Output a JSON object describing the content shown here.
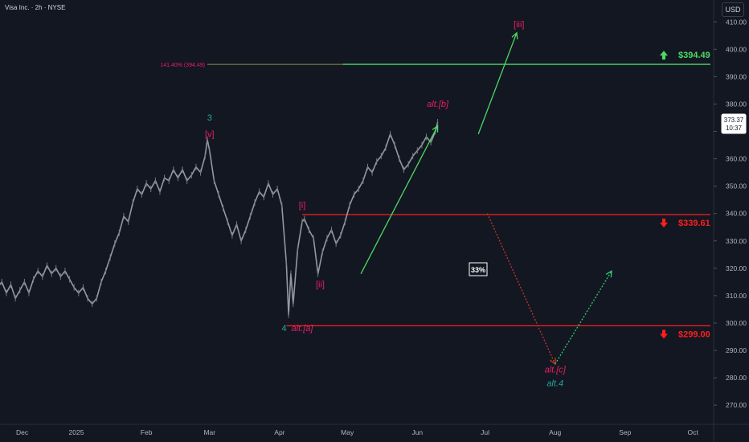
{
  "header": {
    "symbol_title": "Visa Inc. · 2h · NYSE",
    "currency": "USD"
  },
  "chart_data": {
    "type": "line",
    "title": "Visa Inc. · 2h · NYSE",
    "ylim": [
      263,
      418
    ],
    "y_ticks": [
      270,
      280,
      290,
      300,
      310,
      320,
      330,
      340,
      350,
      360,
      370,
      380,
      390,
      400,
      410
    ],
    "y_tick_labels": [
      "270.00",
      "280.00",
      "290.00",
      "300.00",
      "310.00",
      "320.00",
      "330.00",
      "340.00",
      "350.00",
      "360.00",
      "370.00",
      "380.00",
      "390.00",
      "400.00",
      "410.00"
    ],
    "x_ticks": [
      {
        "label": "Dec",
        "d": -24
      },
      {
        "label": "2025",
        "d": 0
      },
      {
        "label": "Feb",
        "d": 31
      },
      {
        "label": "Mar",
        "d": 59
      },
      {
        "label": "Apr",
        "d": 90
      },
      {
        "label": "May",
        "d": 120
      },
      {
        "label": "Jun",
        "d": 151
      },
      {
        "label": "Jul",
        "d": 181
      },
      {
        "label": "Aug",
        "d": 212
      },
      {
        "label": "Sep",
        "d": 243
      },
      {
        "label": "Oct",
        "d": 273
      }
    ],
    "series": [
      {
        "values": [
          [
            -35,
            313
          ],
          [
            -33,
            315
          ],
          [
            -31,
            311
          ],
          [
            -29,
            314
          ],
          [
            -27,
            309
          ],
          [
            -25,
            312
          ],
          [
            -23,
            315
          ],
          [
            -21,
            311
          ],
          [
            -19,
            316
          ],
          [
            -17,
            319
          ],
          [
            -15,
            317
          ],
          [
            -13,
            321
          ],
          [
            -11,
            318
          ],
          [
            -9,
            320
          ],
          [
            -7,
            317
          ],
          [
            -5,
            319
          ],
          [
            -3,
            316
          ],
          [
            -1,
            313
          ],
          [
            1,
            311
          ],
          [
            3,
            313
          ],
          [
            5,
            309
          ],
          [
            7,
            307
          ],
          [
            9,
            309
          ],
          [
            11,
            315
          ],
          [
            13,
            319
          ],
          [
            15,
            324
          ],
          [
            17,
            329
          ],
          [
            19,
            333
          ],
          [
            21,
            339
          ],
          [
            23,
            337
          ],
          [
            25,
            344
          ],
          [
            27,
            349
          ],
          [
            29,
            347
          ],
          [
            31,
            351
          ],
          [
            33,
            349
          ],
          [
            35,
            352
          ],
          [
            37,
            348
          ],
          [
            39,
            353
          ],
          [
            41,
            352
          ],
          [
            43,
            356
          ],
          [
            45,
            353
          ],
          [
            47,
            356
          ],
          [
            49,
            352
          ],
          [
            51,
            354
          ],
          [
            53,
            357
          ],
          [
            55,
            355
          ],
          [
            57,
            361
          ],
          [
            58,
            367
          ],
          [
            59,
            363
          ],
          [
            61,
            352
          ],
          [
            63,
            347
          ],
          [
            65,
            342
          ],
          [
            67,
            337
          ],
          [
            69,
            332
          ],
          [
            71,
            336
          ],
          [
            73,
            330
          ],
          [
            75,
            334
          ],
          [
            77,
            339
          ],
          [
            79,
            344
          ],
          [
            81,
            348
          ],
          [
            83,
            346
          ],
          [
            85,
            351
          ],
          [
            87,
            347
          ],
          [
            89,
            349
          ],
          [
            91,
            343
          ],
          [
            93,
            322
          ],
          [
            94,
            303
          ],
          [
            95,
            318
          ],
          [
            96,
            307
          ],
          [
            98,
            327
          ],
          [
            100,
            337
          ],
          [
            101,
            338
          ],
          [
            103,
            334
          ],
          [
            105,
            331
          ],
          [
            107,
            318
          ],
          [
            109,
            326
          ],
          [
            111,
            331
          ],
          [
            113,
            334
          ],
          [
            115,
            329
          ],
          [
            117,
            332
          ],
          [
            119,
            337
          ],
          [
            121,
            343
          ],
          [
            123,
            347
          ],
          [
            125,
            349
          ],
          [
            127,
            352
          ],
          [
            129,
            357
          ],
          [
            131,
            355
          ],
          [
            133,
            359
          ],
          [
            135,
            361
          ],
          [
            137,
            364
          ],
          [
            139,
            369
          ],
          [
            141,
            365
          ],
          [
            143,
            360
          ],
          [
            145,
            356
          ],
          [
            147,
            358
          ],
          [
            149,
            361
          ],
          [
            151,
            363
          ],
          [
            153,
            365
          ],
          [
            155,
            368
          ],
          [
            157,
            366
          ],
          [
            159,
            370
          ],
          [
            160,
            373.37
          ]
        ]
      }
    ],
    "levels": [
      {
        "price": 394.49,
        "label": "$394.49",
        "color": "#4cd964",
        "direction": "up",
        "fib_label": "141.40% (394.49)"
      },
      {
        "price": 339.61,
        "label": "$339.61",
        "color": "#ff1e1e",
        "direction": "down"
      },
      {
        "price": 299.0,
        "label": "$299.00",
        "color": "#ff1e1e",
        "direction": "down"
      }
    ],
    "projections": [
      {
        "from": [
          126,
          318
        ],
        "to": [
          160,
          372
        ],
        "style": "solid",
        "color": "#4cd964"
      },
      {
        "from": [
          178,
          369
        ],
        "to": [
          195,
          406
        ],
        "style": "solid",
        "color": "#4cd964"
      },
      {
        "from": [
          182,
          340
        ],
        "to": [
          212,
          285
        ],
        "style": "dotted",
        "color": "#c0392b"
      },
      {
        "from": [
          212,
          285
        ],
        "to": [
          237,
          319
        ],
        "style": "dotted",
        "color": "#2ecc71"
      }
    ],
    "wave_labels": [
      {
        "text": "3",
        "d": 59,
        "p": 374,
        "color": "#26a69a"
      },
      {
        "text": "[v]",
        "d": 59,
        "p": 368,
        "color": "#e91e63"
      },
      {
        "text": "[i]",
        "d": 100,
        "p": 342,
        "color": "#e91e63"
      },
      {
        "text": "[ii]",
        "d": 108,
        "p": 313,
        "color": "#e91e63"
      },
      {
        "text": "4",
        "d": 92,
        "p": 297,
        "color": "#26a69a"
      },
      {
        "text": "alt.[a]",
        "d": 100,
        "p": 297,
        "color": "#e91e63"
      },
      {
        "text": "alt.[b]",
        "d": 160,
        "p": 379,
        "color": "#e91e63"
      },
      {
        "text": "[iii]",
        "d": 196,
        "p": 408,
        "color": "#e91e63"
      },
      {
        "text": "alt.[c]",
        "d": 212,
        "p": 282,
        "color": "#e91e63"
      },
      {
        "text": "alt.4",
        "d": 212,
        "p": 277,
        "color": "#26a69a"
      }
    ],
    "probability_label": "33%",
    "last_price": {
      "value": "373.37",
      "time": "10:37"
    }
  }
}
